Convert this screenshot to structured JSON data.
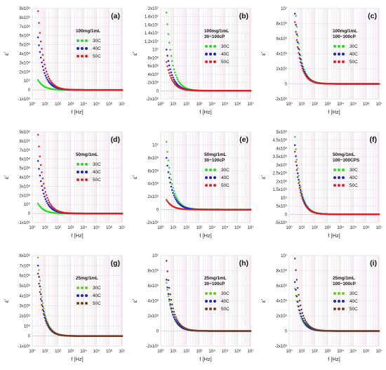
{
  "chart_data": [
    {
      "id": "a",
      "type": "scatter",
      "panel_label": "(a)",
      "xlabel": "f [Hz]",
      "ylabel": "ε'",
      "xscale": "log",
      "xlim": [
        1,
        10000000
      ],
      "ylim": [
        -1000000,
        9000000
      ],
      "yticks": [
        -1000000,
        0,
        1000000,
        2000000,
        3000000,
        4000000,
        5000000,
        6000000,
        7000000,
        8000000,
        9000000
      ],
      "ytick_labels": [
        "-1x10⁶",
        "0",
        "10⁶",
        "2x10⁶",
        "3x10⁶",
        "4x10⁶",
        "5x10⁶",
        "6x10⁶",
        "7x10⁶",
        "8x10⁶",
        "9x10⁶"
      ],
      "xticks": [
        1,
        10,
        100,
        1000,
        10000,
        100000,
        1000000,
        10000000
      ],
      "xtick_labels": [
        "10⁰",
        "10¹",
        "10²",
        "10³",
        "10⁴",
        "10⁵",
        "10⁶",
        "10⁷"
      ],
      "legend_title": [
        "100mg/1mL"
      ],
      "legend_position": "right",
      "series": [
        {
          "name": "30C",
          "color": "#22dd22",
          "y0": 1100000,
          "decay": 0.45
        },
        {
          "name": "40C",
          "color": "#1a22cc",
          "y0": 5800000,
          "decay": 0.45
        },
        {
          "name": "50C",
          "color": "#e02020",
          "y0": 8700000,
          "decay": 0.45
        }
      ]
    },
    {
      "id": "b",
      "type": "scatter",
      "panel_label": "(b)",
      "xlabel": "f [Hz]",
      "ylabel": "ε'",
      "xscale": "log",
      "xlim": [
        1,
        10000000
      ],
      "ylim": [
        -2000000,
        20000000
      ],
      "yticks": [
        -2000000,
        0,
        2000000,
        4000000,
        6000000,
        8000000,
        10000000,
        12000000,
        14000000,
        16000000,
        18000000,
        20000000
      ],
      "ytick_labels": [
        "-2x10⁶",
        "0",
        "2x10⁶",
        "4x10⁶",
        "6x10⁶",
        "8x10⁶",
        "10⁷",
        "1.2x10⁷",
        "1.4x10⁷",
        "1.6x10⁷",
        "1.8x10⁷",
        "2x10⁷"
      ],
      "xticks": [
        1,
        10,
        100,
        1000,
        10000,
        100000,
        1000000,
        10000000
      ],
      "xtick_labels": [
        "10⁰",
        "10¹",
        "10²",
        "10³",
        "10⁴",
        "10⁵",
        "10⁶",
        "10⁷"
      ],
      "legend_title": [
        "100mg/1mL",
        "30~100cP"
      ],
      "legend_position": "right",
      "series": [
        {
          "name": "30C",
          "color": "#22dd22",
          "y0": 19000000,
          "decay": 0.45
        },
        {
          "name": "40C",
          "color": "#1a22cc",
          "y0": 10000000,
          "decay": 0.45
        },
        {
          "name": "50C",
          "color": "#e02020",
          "y0": 7000000,
          "decay": 0.45
        }
      ]
    },
    {
      "id": "c",
      "type": "scatter",
      "panel_label": "(c)",
      "xlabel": "f [Hz]",
      "ylabel": "ε'",
      "xscale": "log",
      "xlim": [
        1,
        10000000
      ],
      "ylim": [
        -2000000,
        10000000
      ],
      "yticks": [
        -2000000,
        0,
        2000000,
        4000000,
        6000000,
        8000000,
        10000000
      ],
      "ytick_labels": [
        "-2x10⁶",
        "0",
        "2x10⁶",
        "4x10⁶",
        "6x10⁶",
        "8x10⁶",
        "10⁷"
      ],
      "xticks": [
        1,
        10,
        100,
        1000,
        10000,
        100000,
        1000000,
        10000000
      ],
      "xtick_labels": [
        "10⁰",
        "10¹",
        "10²",
        "10³",
        "10⁴",
        "10⁵",
        "10⁶",
        "10⁷"
      ],
      "legend_title": [
        "100mg/1mL",
        "100~300cP"
      ],
      "legend_position": "right",
      "series": [
        {
          "name": "30C",
          "color": "#22dd22",
          "y0": 10700000,
          "decay": 0.42
        },
        {
          "name": "40C",
          "color": "#1a22cc",
          "y0": 9300000,
          "decay": 0.42
        },
        {
          "name": "50C",
          "color": "#e02020",
          "y0": 8200000,
          "decay": 0.42
        }
      ]
    },
    {
      "id": "d",
      "type": "scatter",
      "panel_label": "(d)",
      "xlabel": "f [Hz]",
      "ylabel": "ε'",
      "xscale": "log",
      "xlim": [
        1,
        10000000
      ],
      "ylim": [
        -1000000,
        9000000
      ],
      "yticks": [
        -1000000,
        0,
        1000000,
        2000000,
        3000000,
        4000000,
        5000000,
        6000000,
        7000000,
        8000000,
        9000000
      ],
      "ytick_labels": [
        "-1x10⁶",
        "0",
        "10⁶",
        "2x10⁶",
        "3x10⁶",
        "4x10⁶",
        "5x10⁶",
        "6x10⁶",
        "7x10⁶",
        "8x10⁶",
        "9x10⁶"
      ],
      "xticks": [
        1,
        10,
        100,
        1000,
        10000,
        100000,
        1000000,
        10000000
      ],
      "xtick_labels": [
        "10⁰",
        "10¹",
        "10²",
        "10³",
        "10⁴",
        "10⁵",
        "10⁶",
        "10⁷"
      ],
      "legend_title": [
        "50mg/1mL"
      ],
      "legend_position": "right",
      "series": [
        {
          "name": "30C",
          "color": "#22dd22",
          "y0": 1100000,
          "decay": 0.45
        },
        {
          "name": "40C",
          "color": "#1a22cc",
          "y0": 5800000,
          "decay": 0.45
        },
        {
          "name": "50C",
          "color": "#e02020",
          "y0": 8700000,
          "decay": 0.45
        }
      ]
    },
    {
      "id": "e",
      "type": "scatter",
      "panel_label": "(e)",
      "xlabel": "f [Hz]",
      "ylabel": "ε'",
      "xscale": "log",
      "xlim": [
        1,
        10000000
      ],
      "ylim": [
        -2000000,
        12000000
      ],
      "yticks": [
        -2000000,
        0,
        2000000,
        4000000,
        6000000,
        8000000,
        10000000
      ],
      "ytick_labels": [
        "-2x10⁶",
        "0",
        "2x10⁶",
        "4x10⁶",
        "6x10⁶",
        "8x10⁶",
        "10⁷"
      ],
      "xticks": [
        1,
        10,
        100,
        1000,
        10000,
        100000,
        1000000,
        10000000
      ],
      "xtick_labels": [
        "10⁰",
        "10¹",
        "10²",
        "10³",
        "10⁴",
        "10⁵",
        "10⁶",
        "10⁷"
      ],
      "legend_title": [
        "50mg/1mL",
        "30~100cP"
      ],
      "legend_position": "right",
      "series": [
        {
          "name": "30C",
          "color": "#22dd22",
          "y0": 10500000,
          "decay": 0.45
        },
        {
          "name": "40C",
          "color": "#1a22cc",
          "y0": 8000000,
          "decay": 0.45
        },
        {
          "name": "50C",
          "color": "#e02020",
          "y0": 1500000,
          "decay": 0.45
        }
      ]
    },
    {
      "id": "f",
      "type": "scatter",
      "panel_label": "(f)",
      "xlabel": "f [Hz]",
      "ylabel": "ε'",
      "xscale": "log",
      "xlim": [
        1,
        10000000
      ],
      "ylim": [
        -500000,
        5000000
      ],
      "yticks": [
        -500000,
        0,
        500000,
        1000000,
        1500000,
        2000000,
        2500000,
        3000000,
        3500000,
        4000000,
        4500000,
        5000000
      ],
      "ytick_labels": [
        "-5x10⁵",
        "0",
        "5x10⁵",
        "10⁶",
        "1.5x10⁶",
        "2x10⁶",
        "2.5x10⁶",
        "3x10⁶",
        "3.5x10⁶",
        "4x10⁶",
        "4.5x10⁶",
        "5x10⁶"
      ],
      "xticks": [
        1,
        10,
        100,
        1000,
        10000,
        100000,
        1000000,
        10000000
      ],
      "xtick_labels": [
        "10⁰",
        "10¹",
        "10²",
        "10³",
        "10⁴",
        "10⁵",
        "10⁶",
        "10⁷"
      ],
      "legend_title": [
        "50mg/1mL",
        "100~300CPS"
      ],
      "legend_position": "right",
      "series": [
        {
          "name": "30C",
          "color": "#22dd22",
          "y0": 4700000,
          "decay": 0.42
        },
        {
          "name": "40C",
          "color": "#1a22cc",
          "y0": 4200000,
          "decay": 0.42
        },
        {
          "name": "50C",
          "color": "#e02020",
          "y0": 3800000,
          "decay": 0.42
        }
      ]
    },
    {
      "id": "g",
      "type": "scatter",
      "panel_label": "(g)",
      "xlabel": "f [Hz]",
      "ylabel": "ε'",
      "xscale": "log",
      "xlim": [
        1,
        10000000
      ],
      "ylim": [
        -1000000,
        8000000
      ],
      "yticks": [
        -1000000,
        0,
        1000000,
        2000000,
        3000000,
        4000000,
        5000000,
        6000000,
        7000000,
        8000000
      ],
      "ytick_labels": [
        "-1x10⁶",
        "0",
        "10⁶",
        "2x10⁶",
        "3x10⁶",
        "4x10⁶",
        "5x10⁶",
        "6x10⁶",
        "7x10⁶",
        "8x10⁶"
      ],
      "xticks": [
        1,
        10,
        100,
        1000,
        10000,
        100000,
        1000000,
        10000000
      ],
      "xtick_labels": [
        "10⁰",
        "10¹",
        "10²",
        "10³",
        "10⁴",
        "10⁵",
        "10⁶",
        "10⁷"
      ],
      "legend_title": [
        "25mg/1mL"
      ],
      "legend_position": "right",
      "series": [
        {
          "name": "30C",
          "color": "#66cc22",
          "y0": 7800000,
          "decay": 0.42
        },
        {
          "name": "40C",
          "color": "#1a22cc",
          "y0": 7000000,
          "decay": 0.42
        },
        {
          "name": "50C",
          "color": "#7a3a1a",
          "y0": 6200000,
          "decay": 0.42
        }
      ]
    },
    {
      "id": "h",
      "type": "scatter",
      "panel_label": "(h)",
      "xlabel": "f [Hz]",
      "ylabel": "ε'",
      "xscale": "log",
      "xlim": [
        1,
        10000000
      ],
      "ylim": [
        -2000000,
        10000000
      ],
      "yticks": [
        -2000000,
        0,
        2000000,
        4000000,
        6000000,
        8000000,
        10000000
      ],
      "ytick_labels": [
        "-2x10⁶",
        "0",
        "2x10⁶",
        "4x10⁶",
        "6x10⁶",
        "8x10⁶",
        "10⁷"
      ],
      "xticks": [
        1,
        10,
        100,
        1000,
        10000,
        100000,
        1000000,
        10000000
      ],
      "xtick_labels": [
        "10⁰",
        "10¹",
        "10²",
        "10³",
        "10⁴",
        "10⁵",
        "10⁶",
        "10⁷"
      ],
      "legend_title": [
        "25mg/1mL",
        "30~100cP"
      ],
      "legend_position": "right",
      "series": [
        {
          "name": "30C",
          "color": "#66cc22",
          "y0": 6400000,
          "decay": 0.45
        },
        {
          "name": "40C",
          "color": "#1a22cc",
          "y0": 6800000,
          "decay": 0.45
        },
        {
          "name": "50C",
          "color": "#7a3a1a",
          "y0": 9300000,
          "decay": 0.45
        }
      ]
    },
    {
      "id": "i",
      "type": "scatter",
      "panel_label": "(i)",
      "xlabel": "f [Hz]",
      "ylabel": "ε'",
      "xscale": "log",
      "xlim": [
        1,
        10000000
      ],
      "ylim": [
        -2000000,
        10000000
      ],
      "yticks": [
        -2000000,
        0,
        2000000,
        4000000,
        6000000,
        8000000,
        10000000
      ],
      "ytick_labels": [
        "-2x10⁶",
        "0",
        "2x10⁶",
        "4x10⁶",
        "6x10⁶",
        "8x10⁶",
        "10⁷"
      ],
      "xticks": [
        1,
        10,
        100,
        1000,
        10000,
        100000,
        1000000,
        10000000
      ],
      "xtick_labels": [
        "10⁰",
        "10¹",
        "10²",
        "10³",
        "10⁴",
        "10⁵",
        "10⁶",
        "10⁷"
      ],
      "legend_title": [
        "25mg/1mL",
        "100~300cP"
      ],
      "legend_position": "right",
      "series": [
        {
          "name": "30C",
          "color": "#66cc22",
          "y0": 5600000,
          "decay": 0.42
        },
        {
          "name": "40C",
          "color": "#1a22cc",
          "y0": 6500000,
          "decay": 0.42
        },
        {
          "name": "50C",
          "color": "#7a3a1a",
          "y0": 9600000,
          "decay": 0.42
        }
      ]
    }
  ]
}
